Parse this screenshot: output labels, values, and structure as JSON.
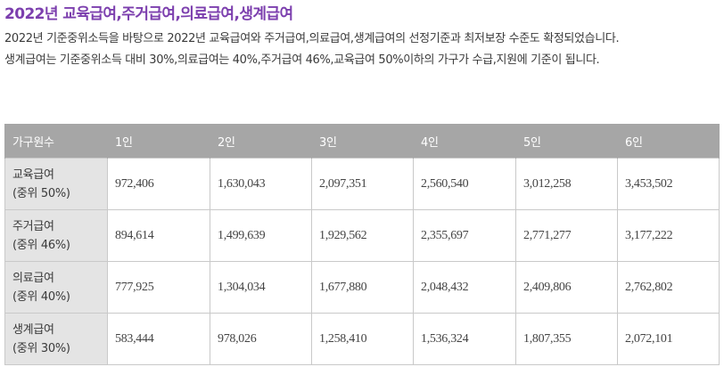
{
  "title": "2022년 교육급여,주거급여,의료급여,생계급여",
  "paragraphs": [
    "2022년 기준중위소득을 바탕으로 2022년 교육급여와 주거급여,의료급여,생계급여의 선정기준과 최저보장 수준도 확정되었습니다.",
    "생계급여는 기준중위소득 대비 30%,의료급여는 40%,주거급여 46%,교육급여 50%이하의 가구가 수급,지원에 기준이 됩니다."
  ],
  "table": {
    "headers": [
      "가구원수",
      "1인",
      "2인",
      "3인",
      "4인",
      "5인",
      "6인"
    ],
    "rows": [
      {
        "name": "교육급여",
        "sub": "(중위 50%)",
        "values": [
          "972,406",
          "1,630,043",
          "2,097,351",
          "2,560,540",
          "3,012,258",
          "3,453,502"
        ]
      },
      {
        "name": "주거급여",
        "sub": "(중위 46%)",
        "values": [
          "894,614",
          "1,499,639",
          "1,929,562",
          "2,355,697",
          "2,771,277",
          "3,177,222"
        ]
      },
      {
        "name": "의료급여",
        "sub": "(중위 40%)",
        "values": [
          "777,925",
          "1,304,034",
          "1,677,880",
          "2,048,432",
          "2,409,806",
          "2,762,802"
        ]
      },
      {
        "name": "생계급여",
        "sub": "(중위 30%)",
        "values": [
          "583,444",
          "978,026",
          "1,258,410",
          "1,536,324",
          "1,807,355",
          "2,072,101"
        ]
      }
    ]
  },
  "colors": {
    "title": "#7c3fae",
    "header_bg": "#a6a6a6",
    "row_header_bg": "#e4e4e4"
  }
}
